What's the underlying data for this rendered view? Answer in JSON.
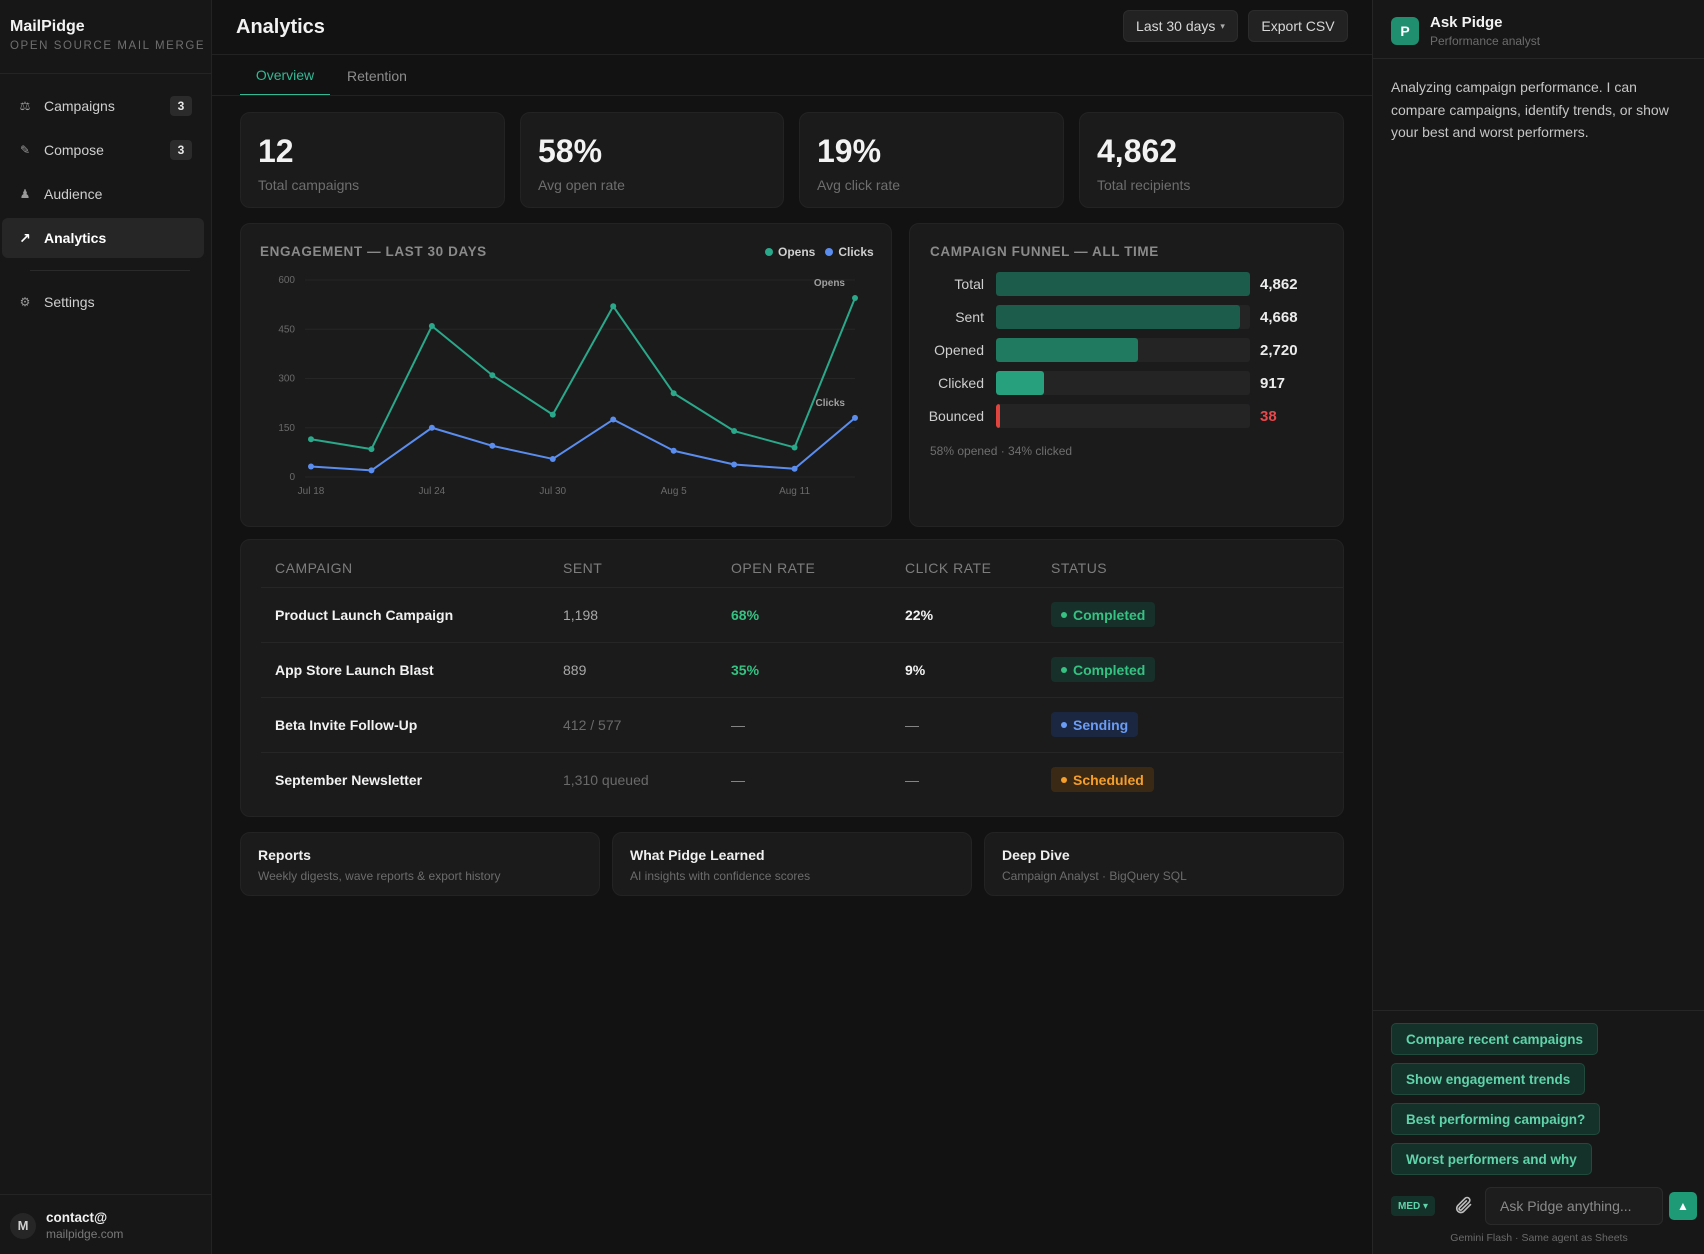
{
  "app": {
    "name": "MailPidge",
    "tagline": "OPEN SOURCE MAIL MERGE"
  },
  "sidebar": {
    "items": [
      {
        "icon": "campaigns-icon",
        "label": "Campaigns",
        "badge": "3"
      },
      {
        "icon": "compose-icon",
        "label": "Compose",
        "badge": "3"
      },
      {
        "icon": "audience-icon",
        "label": "Audience",
        "badge": ""
      },
      {
        "icon": "analytics-icon",
        "label": "Analytics",
        "badge": "",
        "active": true
      },
      {
        "icon": "settings-icon",
        "label": "Settings",
        "badge": ""
      }
    ],
    "user": {
      "initial": "M",
      "name": "contact@",
      "domain": "mailpidge.com"
    }
  },
  "header": {
    "title": "Analytics",
    "range_label": "Last 30 days",
    "range_caret": "▾",
    "export_label": "Export CSV"
  },
  "tabs": [
    {
      "label": "Overview",
      "active": true
    },
    {
      "label": "Retention"
    }
  ],
  "stats": [
    {
      "value": "12",
      "label": "Total campaigns"
    },
    {
      "value": "58%",
      "label": "Avg open rate"
    },
    {
      "value": "19%",
      "label": "Avg click rate"
    },
    {
      "value": "4,862",
      "label": "Total recipients"
    }
  ],
  "engagement": {
    "title": "ENGAGEMENT — LAST 30 DAYS",
    "legend": {
      "opens": "Opens",
      "clicks": "Clicks"
    },
    "colors": {
      "opens": "#2aa88a",
      "clicks": "#5b8def"
    }
  },
  "chart_data": {
    "type": "line",
    "title": "ENGAGEMENT — LAST 30 DAYS",
    "ylim": [
      0,
      600
    ],
    "yticks": [
      0,
      150,
      300,
      450,
      600
    ],
    "x": [
      "Jul 18",
      "Jul 21",
      "Jul 24",
      "Jul 27",
      "Jul 30",
      "Aug 2",
      "Aug 5",
      "Aug 8",
      "Aug 11",
      "Aug 13"
    ],
    "xtick_labels": [
      "Jul 18",
      "Jul 24",
      "Jul 30",
      "Aug 5",
      "Aug 11"
    ],
    "xtick_indices": [
      0,
      2,
      4,
      6,
      8
    ],
    "series": [
      {
        "name": "Opens",
        "color": "#2aa88a",
        "values": [
          115,
          85,
          460,
          310,
          190,
          520,
          255,
          140,
          90,
          545
        ]
      },
      {
        "name": "Clicks",
        "color": "#5b8def",
        "values": [
          32,
          20,
          150,
          95,
          55,
          175,
          80,
          38,
          25,
          180
        ]
      }
    ],
    "grid": true,
    "legend_position": "top-right"
  },
  "funnel": {
    "title": "CAMPAIGN FUNNEL — ALL TIME",
    "rows": [
      {
        "label": "Total",
        "value": "4,862",
        "fraction": 1.0,
        "color": "#1c5c4a"
      },
      {
        "label": "Sent",
        "value": "4,668",
        "fraction": 0.96,
        "color": "#1c5c4a"
      },
      {
        "label": "Opened",
        "value": "2,720",
        "fraction": 0.56,
        "color": "#1f7a5f"
      },
      {
        "label": "Clicked",
        "value": "917",
        "fraction": 0.19,
        "color": "#26a07d"
      },
      {
        "label": "Bounced",
        "value": "38",
        "fraction": 0.012,
        "color": "#e0443e",
        "value_color": "#e5484d"
      }
    ],
    "note": "58% opened · 34% clicked"
  },
  "table": {
    "headers": [
      "CAMPAIGN",
      "SENT",
      "OPEN RATE",
      "CLICK RATE",
      "STATUS"
    ],
    "rows": [
      {
        "name": "Product Launch Campaign",
        "sent": "1,198",
        "open": "68%",
        "click": "22%",
        "status": "Completed",
        "status_color": "#35c283",
        "status_bg": "#17302a"
      },
      {
        "name": "App Store Launch Blast",
        "sent": "889",
        "open": "35%",
        "click": "9%",
        "status": "Completed",
        "status_color": "#35c283",
        "status_bg": "#17302a"
      },
      {
        "name": "Beta Invite Follow-Up",
        "sent": "412 / 577",
        "open": "—",
        "click": "—",
        "status": "Sending",
        "status_color": "#6b9cf5",
        "status_bg": "#1b2740"
      },
      {
        "name": "September Newsletter",
        "sent": "1,310 queued",
        "open": "—",
        "click": "—",
        "status": "Scheduled",
        "status_color": "#f59e2c",
        "status_bg": "#3a2a15"
      }
    ]
  },
  "links": [
    {
      "title": "Reports",
      "sub": "Weekly digests, wave reports & export history"
    },
    {
      "title": "What Pidge Learned",
      "sub": "AI insights with confidence scores"
    },
    {
      "title": "Deep Dive",
      "sub": "Campaign Analyst · BigQuery SQL"
    }
  ],
  "assistant": {
    "initial": "P",
    "title": "Ask Pidge",
    "subtitle": "Performance analyst",
    "message": "Analyzing campaign performance. I can compare campaigns, identify trends, or show your best and worst performers.",
    "suggestions": [
      "Compare recent campaigns",
      "Show engagement trends",
      "Best performing campaign?",
      "Worst performers and why"
    ],
    "model": "MED ▾",
    "input_placeholder": "Ask Pidge anything...",
    "send_icon": "▲",
    "footer": "Gemini Flash · Same agent as Sheets"
  }
}
